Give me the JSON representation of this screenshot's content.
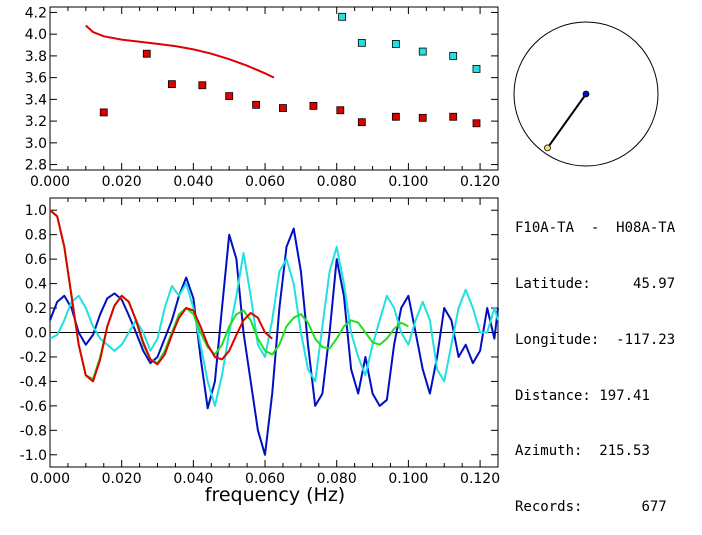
{
  "info": {
    "station_pair": "F10A-TA  -  H08A-TA",
    "latitude_label": "Latitude:",
    "latitude": "45.97",
    "longitude_label": "Longitude:",
    "longitude": "-117.23",
    "distance_label": "Distance:",
    "distance": "197.41",
    "azimuth_label": "Azimuth:",
    "azimuth": "215.53",
    "records_label": "Records:",
    "records": "677"
  },
  "colors": {
    "red": "#e00000",
    "cyan": "#20e0e0",
    "blue": "#0010c0",
    "green": "#20e020",
    "black": "#000000"
  },
  "chart_data": [
    {
      "type": "scatter",
      "title": "",
      "xlabel": "",
      "ylabel": "",
      "xlim": [
        0.0,
        0.125
      ],
      "ylim": [
        2.75,
        4.25
      ],
      "xticks": [
        "0.000",
        "0.020",
        "0.040",
        "0.060",
        "0.080",
        "0.100",
        "0.120"
      ],
      "yticks": [
        "2.8",
        "3.0",
        "3.2",
        "3.4",
        "3.6",
        "3.8",
        "4.0",
        "4.2"
      ],
      "series": [
        {
          "kind": "line",
          "color": "red",
          "x": [
            0.01,
            0.012,
            0.015,
            0.02,
            0.025,
            0.03,
            0.035,
            0.04,
            0.045,
            0.05,
            0.055,
            0.06,
            0.0625
          ],
          "y": [
            4.08,
            4.02,
            3.98,
            3.95,
            3.93,
            3.91,
            3.89,
            3.86,
            3.82,
            3.77,
            3.71,
            3.64,
            3.6
          ]
        },
        {
          "kind": "markers",
          "color": "red",
          "x": [
            0.015,
            0.027,
            0.034,
            0.0425,
            0.05,
            0.0575,
            0.065,
            0.0735,
            0.081,
            0.087,
            0.0965,
            0.104,
            0.1125,
            0.119
          ],
          "y": [
            3.28,
            3.82,
            3.54,
            3.53,
            3.43,
            3.35,
            3.32,
            3.34,
            3.3,
            3.19,
            3.24,
            3.23,
            3.24,
            3.18
          ]
        },
        {
          "kind": "markers",
          "color": "cyan",
          "x": [
            0.0815,
            0.087,
            0.0965,
            0.104,
            0.1125,
            0.119
          ],
          "y": [
            4.16,
            3.92,
            3.91,
            3.84,
            3.8,
            3.68
          ]
        }
      ]
    },
    {
      "type": "line",
      "title": "",
      "xlabel": "frequency  (Hz)",
      "ylabel": "",
      "xlim": [
        0.0,
        0.125
      ],
      "ylim": [
        -1.1,
        1.1
      ],
      "xticks": [
        "0.000",
        "0.020",
        "0.040",
        "0.060",
        "0.080",
        "0.100",
        "0.120"
      ],
      "yticks": [
        "1.0",
        "0.8",
        "0.6",
        "0.4",
        "0.2",
        "0.0",
        "-0.2",
        "-0.4",
        "-0.6",
        "-0.8",
        "-1.0"
      ],
      "zero_line": true,
      "series": [
        {
          "color": "blue",
          "x": [
            0.0,
            0.002,
            0.004,
            0.006,
            0.008,
            0.01,
            0.012,
            0.014,
            0.016,
            0.018,
            0.02,
            0.022,
            0.024,
            0.026,
            0.028,
            0.03,
            0.032,
            0.034,
            0.036,
            0.038,
            0.04,
            0.042,
            0.044,
            0.046,
            0.048,
            0.05,
            0.052,
            0.054,
            0.056,
            0.058,
            0.06,
            0.062,
            0.064,
            0.066,
            0.068,
            0.07,
            0.072,
            0.074,
            0.076,
            0.078,
            0.08,
            0.082,
            0.084,
            0.086,
            0.088,
            0.09,
            0.092,
            0.094,
            0.096,
            0.098,
            0.1,
            0.102,
            0.104,
            0.106,
            0.108,
            0.11,
            0.112,
            0.114,
            0.116,
            0.118,
            0.12,
            0.122,
            0.124,
            0.125
          ],
          "y": [
            0.1,
            0.25,
            0.3,
            0.2,
            0.0,
            -0.1,
            -0.02,
            0.15,
            0.28,
            0.32,
            0.27,
            0.14,
            0.0,
            -0.15,
            -0.25,
            -0.2,
            -0.05,
            0.1,
            0.3,
            0.45,
            0.28,
            -0.2,
            -0.62,
            -0.4,
            0.2,
            0.8,
            0.6,
            0.0,
            -0.4,
            -0.8,
            -1.0,
            -0.5,
            0.2,
            0.7,
            0.85,
            0.5,
            -0.1,
            -0.6,
            -0.5,
            0.0,
            0.6,
            0.3,
            -0.3,
            -0.5,
            -0.2,
            -0.5,
            -0.6,
            -0.55,
            -0.1,
            0.2,
            0.3,
            0.0,
            -0.3,
            -0.5,
            -0.2,
            0.2,
            0.1,
            -0.2,
            -0.1,
            -0.25,
            -0.15,
            0.2,
            -0.05,
            0.2
          ]
        },
        {
          "color": "cyan",
          "x": [
            0.0,
            0.002,
            0.004,
            0.006,
            0.008,
            0.01,
            0.012,
            0.014,
            0.016,
            0.018,
            0.02,
            0.022,
            0.024,
            0.026,
            0.028,
            0.03,
            0.032,
            0.034,
            0.036,
            0.038,
            0.04,
            0.042,
            0.044,
            0.046,
            0.048,
            0.05,
            0.052,
            0.054,
            0.056,
            0.058,
            0.06,
            0.062,
            0.064,
            0.066,
            0.068,
            0.07,
            0.072,
            0.074,
            0.076,
            0.078,
            0.08,
            0.082,
            0.084,
            0.086,
            0.088,
            0.09,
            0.092,
            0.094,
            0.096,
            0.098,
            0.1,
            0.102,
            0.104,
            0.106,
            0.108,
            0.11,
            0.112,
            0.114,
            0.116,
            0.118,
            0.12,
            0.122,
            0.124,
            0.125
          ],
          "y": [
            -0.05,
            -0.02,
            0.1,
            0.25,
            0.3,
            0.2,
            0.05,
            -0.05,
            -0.1,
            -0.15,
            -0.1,
            0.0,
            0.1,
            0.0,
            -0.15,
            -0.05,
            0.2,
            0.38,
            0.3,
            0.4,
            0.2,
            -0.1,
            -0.4,
            -0.6,
            -0.35,
            0.0,
            0.3,
            0.65,
            0.3,
            -0.1,
            -0.2,
            0.1,
            0.5,
            0.6,
            0.4,
            0.0,
            -0.3,
            -0.4,
            0.05,
            0.5,
            0.7,
            0.4,
            0.0,
            -0.2,
            -0.35,
            -0.1,
            0.1,
            0.3,
            0.2,
            0.0,
            -0.1,
            0.1,
            0.25,
            0.1,
            -0.3,
            -0.4,
            -0.1,
            0.2,
            0.35,
            0.2,
            0.0,
            0.0,
            0.2,
            0.1
          ]
        },
        {
          "color": "green",
          "x": [
            0.0,
            0.002,
            0.004,
            0.006,
            0.008,
            0.01,
            0.012,
            0.014,
            0.016,
            0.018,
            0.02,
            0.022,
            0.024,
            0.026,
            0.028,
            0.03,
            0.032,
            0.034,
            0.036,
            0.038,
            0.04,
            0.042,
            0.044,
            0.046,
            0.048,
            0.05,
            0.052,
            0.054,
            0.056,
            0.058,
            0.06,
            0.062,
            0.064,
            0.066,
            0.068,
            0.07,
            0.072,
            0.074,
            0.076,
            0.078,
            0.08,
            0.082,
            0.084,
            0.086,
            0.088,
            0.09,
            0.092,
            0.094,
            0.096,
            0.098,
            0.1
          ],
          "y": [
            1.0,
            0.95,
            0.7,
            0.3,
            -0.1,
            -0.35,
            -0.38,
            -0.2,
            0.05,
            0.22,
            0.3,
            0.25,
            0.1,
            -0.1,
            -0.22,
            -0.25,
            -0.15,
            0.0,
            0.15,
            0.2,
            0.15,
            0.0,
            -0.12,
            -0.18,
            -0.1,
            0.05,
            0.15,
            0.18,
            0.1,
            -0.05,
            -0.15,
            -0.18,
            -0.1,
            0.05,
            0.12,
            0.15,
            0.08,
            -0.05,
            -0.12,
            -0.13,
            -0.05,
            0.05,
            0.1,
            0.08,
            0.0,
            -0.08,
            -0.1,
            -0.05,
            0.03,
            0.08,
            0.05
          ]
        },
        {
          "color": "red",
          "x": [
            0.0,
            0.002,
            0.004,
            0.006,
            0.008,
            0.01,
            0.012,
            0.014,
            0.016,
            0.018,
            0.02,
            0.022,
            0.024,
            0.026,
            0.028,
            0.03,
            0.032,
            0.034,
            0.036,
            0.038,
            0.04,
            0.042,
            0.044,
            0.046,
            0.048,
            0.05,
            0.052,
            0.054,
            0.056,
            0.058,
            0.06,
            0.062
          ],
          "y": [
            1.0,
            0.95,
            0.7,
            0.3,
            -0.1,
            -0.35,
            -0.4,
            -0.22,
            0.05,
            0.22,
            0.3,
            0.25,
            0.1,
            -0.08,
            -0.22,
            -0.26,
            -0.18,
            -0.02,
            0.12,
            0.2,
            0.18,
            0.05,
            -0.1,
            -0.2,
            -0.22,
            -0.15,
            -0.02,
            0.1,
            0.16,
            0.12,
            0.0,
            -0.05
          ]
        }
      ]
    }
  ],
  "compass": {
    "azimuth_deg": 215.53,
    "fraction_of_radius": 0.92
  }
}
